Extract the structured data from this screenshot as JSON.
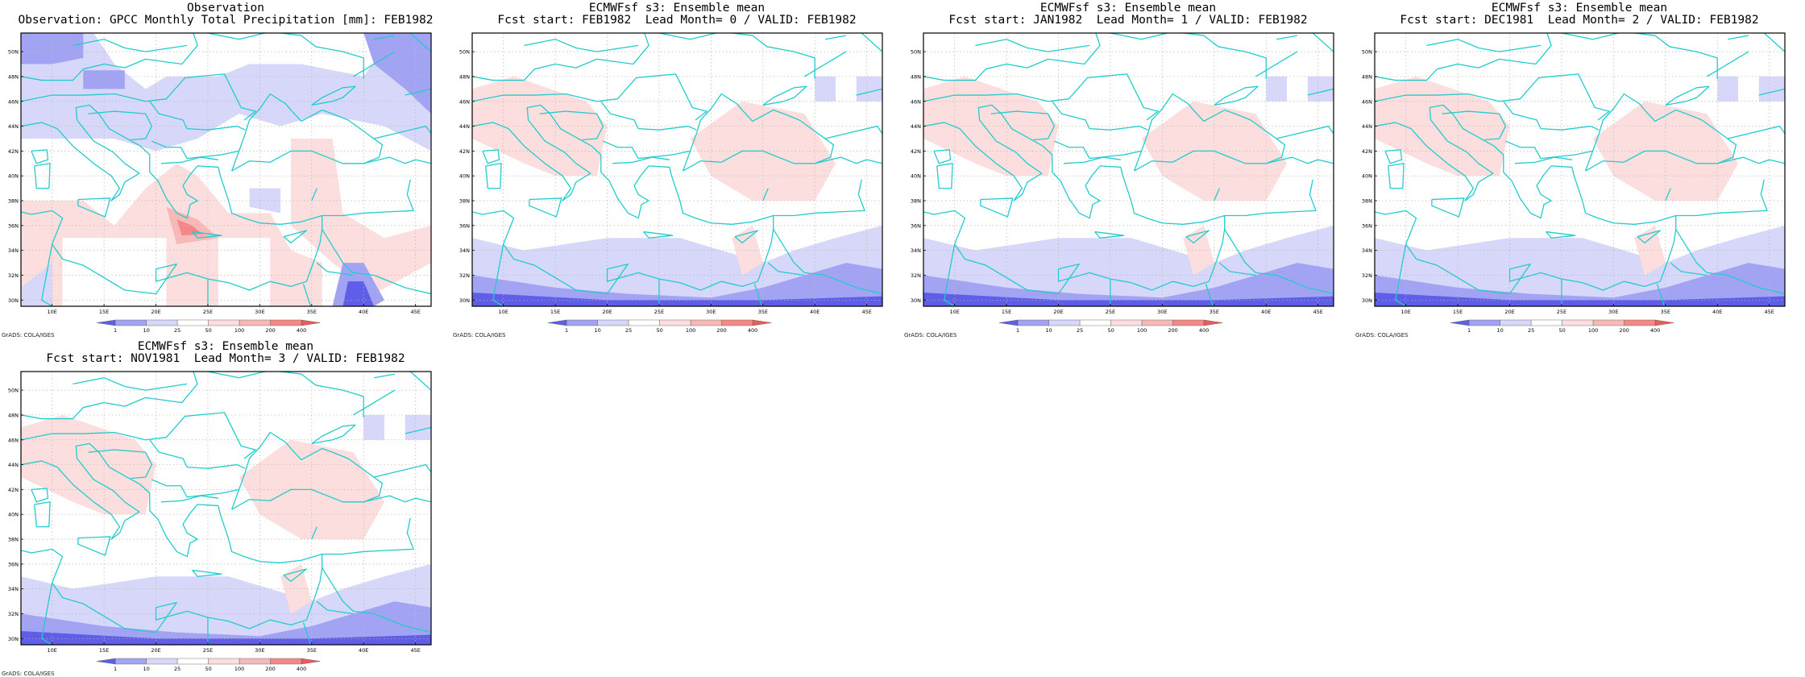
{
  "colors": {
    "coast": "#22cccc",
    "grid": "#b8b8b8",
    "frame": "#000000",
    "levels_fill": [
      "#5e5ee8",
      "#a3a3f4",
      "#d7d7fa",
      "#ffffff",
      "#fcdede",
      "#f7b8b8",
      "#f38888",
      "#ee5a5a"
    ]
  },
  "legend": {
    "ticks": [
      "1",
      "10",
      "25",
      "50",
      "100",
      "200",
      "400"
    ]
  },
  "axes": {
    "lat_labels": [
      "50N",
      "48N",
      "46N",
      "44N",
      "42N",
      "40N",
      "38N",
      "36N",
      "34N",
      "32N",
      "30N"
    ],
    "lon_labels": [
      "10E",
      "15E",
      "20E",
      "25E",
      "30E",
      "35E",
      "40E",
      "45E"
    ]
  },
  "footer": "GrADS: COLA/IGES",
  "panels": [
    {
      "title1": "Observation",
      "title2": "Observation: GPCC Monthly Total Precipitation [mm]: FEB1982",
      "kind": "obs"
    },
    {
      "title1": "ECMWFsf s3: Ensemble mean",
      "title2": "Fcst start: FEB1982  Lead Month= 0 / VALID: FEB1982",
      "kind": "fcst"
    },
    {
      "title1": "ECMWFsf s3: Ensemble mean",
      "title2": "Fcst start: JAN1982  Lead Month= 1 / VALID: FEB1982",
      "kind": "fcst"
    },
    {
      "title1": "ECMWFsf s3: Ensemble mean",
      "title2": "Fcst start: DEC1981  Lead Month= 2 / VALID: FEB1982",
      "kind": "fcst"
    },
    {
      "title1": "ECMWFsf s3: Ensemble mean",
      "title2": "Fcst start: NOV1981  Lead Month= 3 / VALID: FEB1982",
      "kind": "fcst"
    }
  ]
}
